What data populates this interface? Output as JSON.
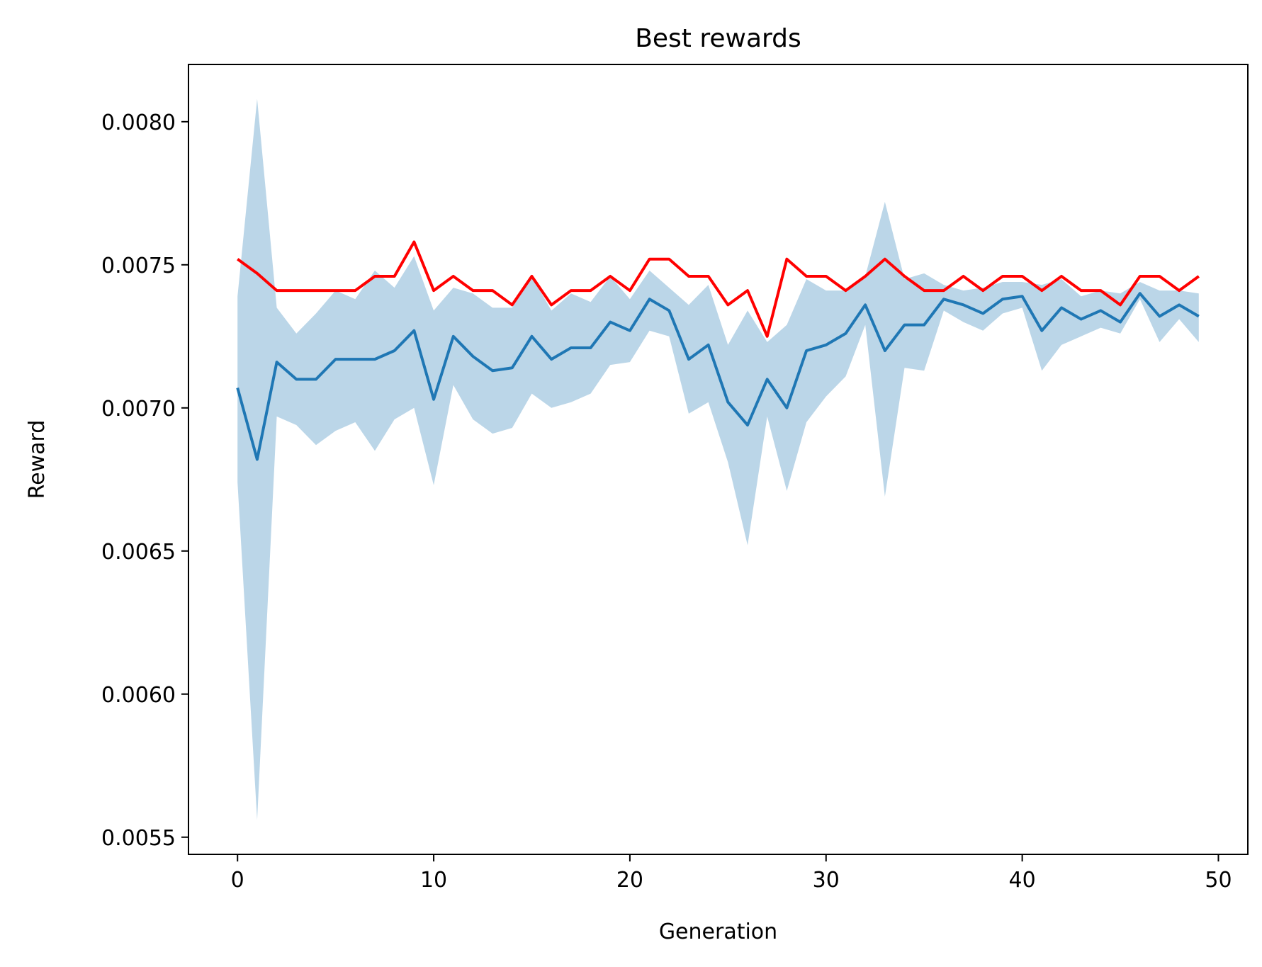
{
  "chart_data": {
    "type": "line",
    "title": "Best rewards",
    "xlabel": "Generation",
    "ylabel": "Reward",
    "xlim": [
      -2.5,
      51.5
    ],
    "ylim": [
      0.00544,
      0.0082
    ],
    "xticks": [
      0,
      10,
      20,
      30,
      40,
      50
    ],
    "xtick_labels": [
      "0",
      "10",
      "20",
      "30",
      "40",
      "50"
    ],
    "yticks": [
      0.0055,
      0.006,
      0.0065,
      0.007,
      0.0075,
      0.008
    ],
    "ytick_labels": [
      "0.0055",
      "0.0060",
      "0.0065",
      "0.0070",
      "0.0075",
      "0.0080"
    ],
    "grid": false,
    "x": [
      0,
      1,
      2,
      3,
      4,
      5,
      6,
      7,
      8,
      9,
      10,
      11,
      12,
      13,
      14,
      15,
      16,
      17,
      18,
      19,
      20,
      21,
      22,
      23,
      24,
      25,
      26,
      27,
      28,
      29,
      30,
      31,
      32,
      33,
      34,
      35,
      36,
      37,
      38,
      39,
      40,
      41,
      42,
      43,
      44,
      45,
      46,
      47,
      48,
      49
    ],
    "series": [
      {
        "color": "#ff0000",
        "values": [
          0.00752,
          0.00747,
          0.00741,
          0.00741,
          0.00741,
          0.00741,
          0.00741,
          0.00746,
          0.00746,
          0.00758,
          0.00741,
          0.00746,
          0.00741,
          0.00741,
          0.00736,
          0.00746,
          0.00736,
          0.00741,
          0.00741,
          0.00746,
          0.00741,
          0.00752,
          0.00752,
          0.00746,
          0.00746,
          0.00736,
          0.00741,
          0.00725,
          0.00752,
          0.00746,
          0.00746,
          0.00741,
          0.00746,
          0.00752,
          0.00746,
          0.00741,
          0.00741,
          0.00746,
          0.00741,
          0.00746,
          0.00746,
          0.00741,
          0.00746,
          0.00741,
          0.00741,
          0.00736,
          0.00746,
          0.00746,
          0.00741,
          0.00746
        ]
      },
      {
        "color": "#1f77b4",
        "values": [
          0.00707,
          0.00682,
          0.00716,
          0.0071,
          0.0071,
          0.00717,
          0.00717,
          0.00717,
          0.0072,
          0.00727,
          0.00703,
          0.00725,
          0.00718,
          0.00713,
          0.00714,
          0.00725,
          0.00717,
          0.00721,
          0.00721,
          0.0073,
          0.00727,
          0.00738,
          0.00734,
          0.00717,
          0.00722,
          0.00702,
          0.00694,
          0.0071,
          0.007,
          0.0072,
          0.00722,
          0.00726,
          0.00736,
          0.0072,
          0.00729,
          0.00729,
          0.00738,
          0.00736,
          0.00733,
          0.00738,
          0.00739,
          0.00727,
          0.00735,
          0.00731,
          0.00734,
          0.0073,
          0.0074,
          0.00732,
          0.00736,
          0.00732
        ],
        "band_color": "#1f77b4",
        "band_opacity": 0.3,
        "band_upper": [
          0.00739,
          0.00808,
          0.00735,
          0.00726,
          0.00733,
          0.00741,
          0.00738,
          0.00748,
          0.00742,
          0.00753,
          0.00734,
          0.00742,
          0.0074,
          0.00735,
          0.00735,
          0.00746,
          0.00734,
          0.0074,
          0.00737,
          0.00746,
          0.00738,
          0.00748,
          0.00742,
          0.00736,
          0.00743,
          0.00722,
          0.00734,
          0.00723,
          0.00729,
          0.00745,
          0.00741,
          0.00741,
          0.00746,
          0.00772,
          0.00745,
          0.00747,
          0.00743,
          0.00741,
          0.00742,
          0.00744,
          0.00744,
          0.00743,
          0.00745,
          0.00739,
          0.00741,
          0.0074,
          0.00744,
          0.00741,
          0.00741,
          0.0074
        ],
        "band_lower": [
          0.00674,
          0.00556,
          0.00697,
          0.00694,
          0.00687,
          0.00692,
          0.00695,
          0.00685,
          0.00696,
          0.007,
          0.00673,
          0.00708,
          0.00696,
          0.00691,
          0.00693,
          0.00705,
          0.007,
          0.00702,
          0.00705,
          0.00715,
          0.00716,
          0.00727,
          0.00725,
          0.00698,
          0.00702,
          0.00681,
          0.00652,
          0.00697,
          0.00671,
          0.00695,
          0.00704,
          0.00711,
          0.00729,
          0.00669,
          0.00714,
          0.00713,
          0.00734,
          0.0073,
          0.00727,
          0.00733,
          0.00735,
          0.00713,
          0.00722,
          0.00725,
          0.00728,
          0.00726,
          0.00738,
          0.00723,
          0.00731,
          0.00723
        ]
      }
    ]
  }
}
